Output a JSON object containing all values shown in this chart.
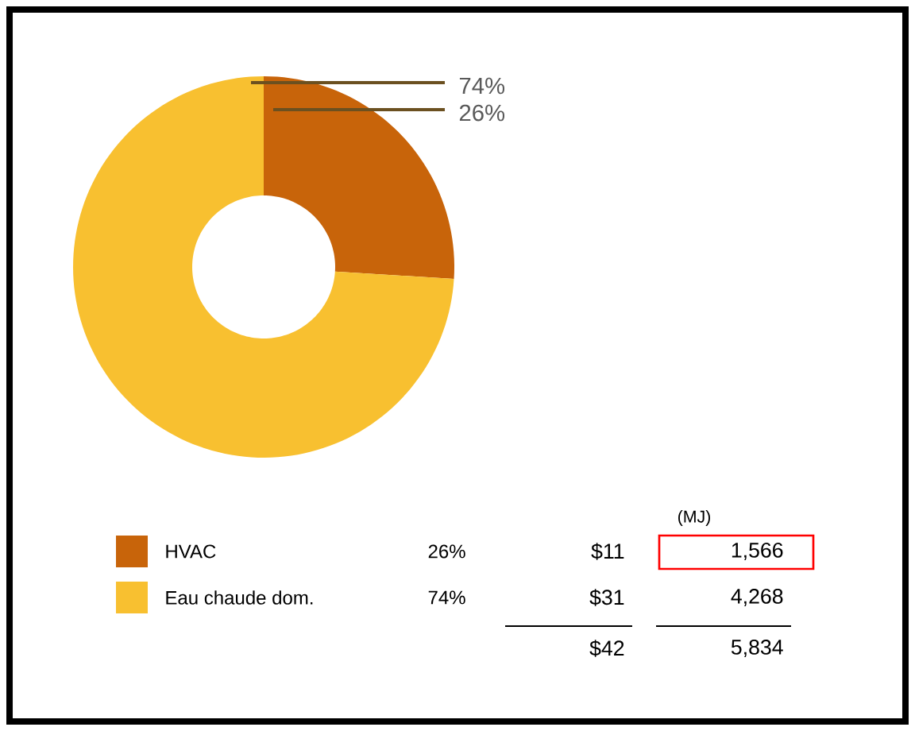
{
  "chart_data": {
    "type": "donut",
    "categories": [
      "HVAC",
      "Eau chaude dom."
    ],
    "values": [
      26,
      74
    ],
    "colors": [
      "#c8640a",
      "#f8c030"
    ],
    "value_labels": [
      "26%",
      "74%"
    ],
    "legend": "bottom",
    "annotations": [
      "(MJ)",
      "$11",
      "1,566",
      "$31",
      "4,268",
      "$42",
      "5,834"
    ]
  }
}
